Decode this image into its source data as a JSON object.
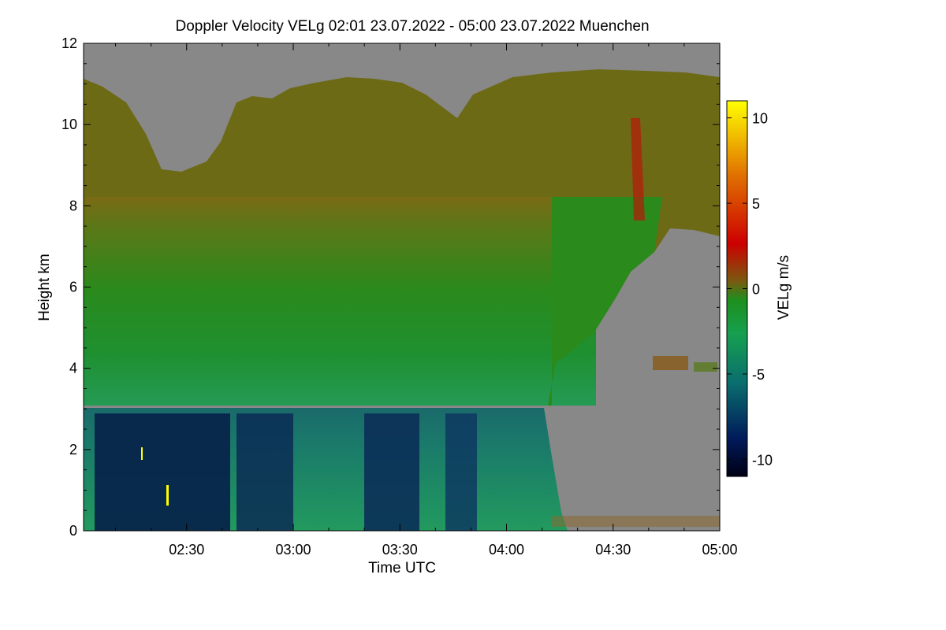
{
  "chart_data": {
    "type": "heatmap",
    "title": "Doppler Velocity VELg   02:01 23.07.2022 - 05:00 23.07.2022 Muenchen",
    "xlabel": "Time UTC",
    "ylabel": "Height km",
    "colorbar_label": "VELg m/s",
    "x_range": [
      "02:01",
      "05:00"
    ],
    "x_ticks": [
      "02:30",
      "03:00",
      "03:30",
      "04:00",
      "04:30",
      "05:00"
    ],
    "y_range": [
      0,
      12
    ],
    "y_ticks": [
      "0",
      "2",
      "4",
      "6",
      "8",
      "10",
      "12"
    ],
    "color_range": [
      -11,
      11
    ],
    "colorbar_ticks": [
      "10",
      "5",
      "0",
      "-5",
      "-10"
    ],
    "colormap_stops": [
      "#000014",
      "#001a5a",
      "#0a6e6e",
      "#16a050",
      "#1e8f1e",
      "#7a5a10",
      "#cc0000",
      "#e07000",
      "#ffff00"
    ],
    "no_signal_color": "#888888",
    "regions": [
      {
        "region": "lower layer 0-3.1 km, 02:01-04:10",
        "velocity_ms": -6
      },
      {
        "region": "downdraft cores 02:17-02:50 and 03:25-03:42, 0-2.9 km",
        "velocity_ms": -9
      },
      {
        "region": "mid layer 3.1-8 km",
        "velocity_ms": -1
      },
      {
        "region": "upper layer 8-11 km",
        "velocity_ms": 1
      },
      {
        "region": "updraft streak 04:35, 7.5-10 km",
        "velocity_ms": 3
      }
    ]
  }
}
